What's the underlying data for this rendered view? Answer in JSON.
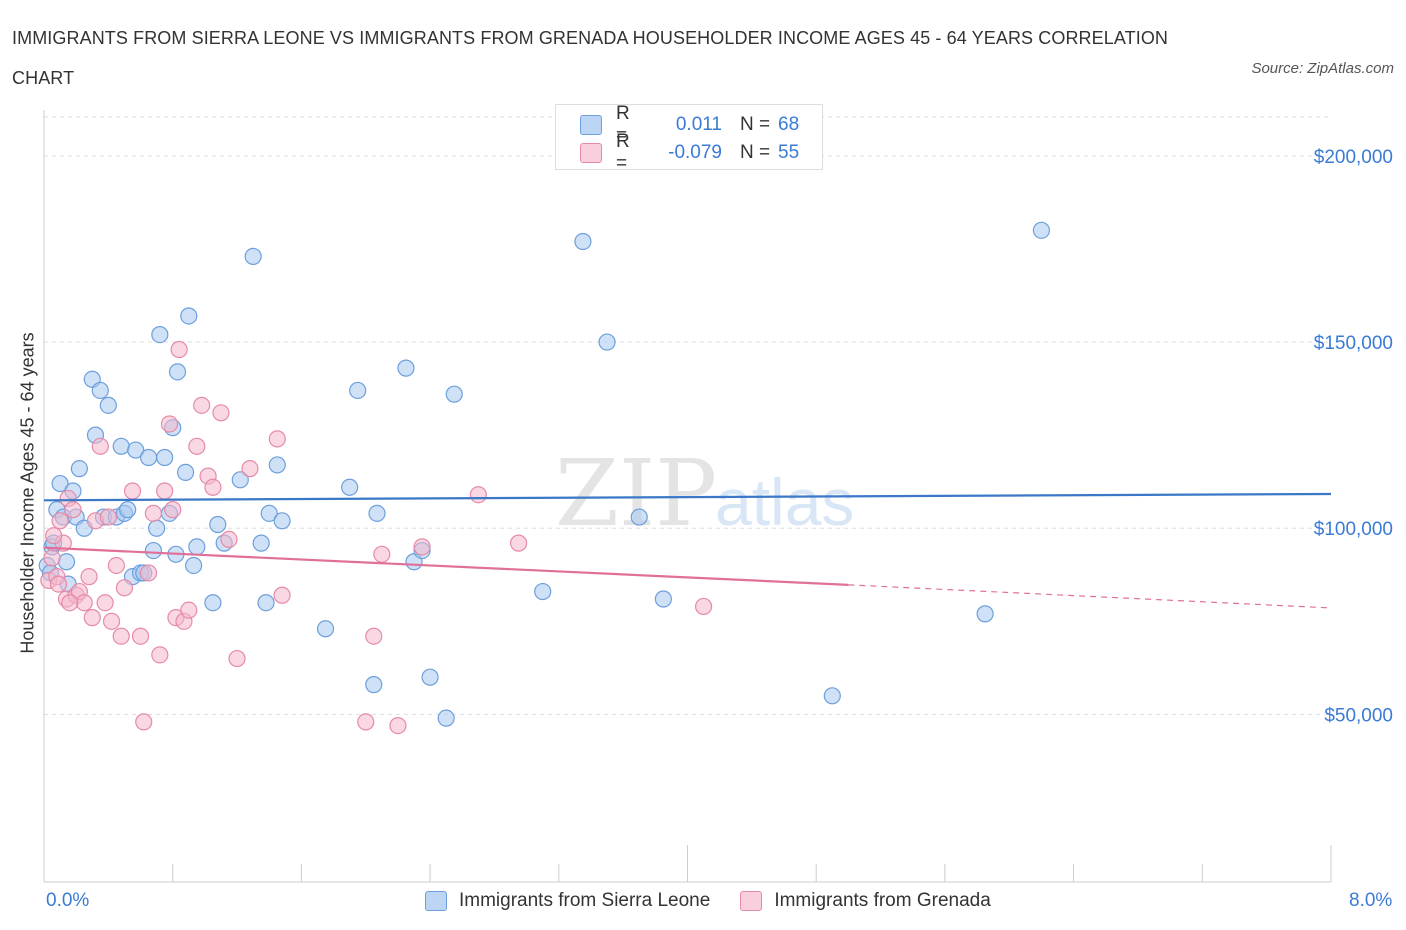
{
  "title": "IMMIGRANTS FROM SIERRA LEONE VS IMMIGRANTS FROM GRENADA HOUSEHOLDER INCOME AGES 45 - 64 YEARS CORRELATION CHART",
  "source": "Source: ZipAtlas.com",
  "colors": {
    "blue_fill": "#a8c8f0",
    "blue_stroke": "#6d9fdc",
    "blue_line": "#3b78c8",
    "pink_fill": "#f4b8cc",
    "pink_stroke": "#e68aa8",
    "pink_line": "#e0709a",
    "axis_text": "#3a7bd5",
    "grid": "#dddddd"
  },
  "legend": {
    "rows": [
      {
        "r_label": "R =",
        "r_value": "0.011",
        "n_label": "N =",
        "n_value": "68"
      },
      {
        "r_label": "R =",
        "r_value": "-0.079",
        "n_label": "N =",
        "n_value": "55"
      }
    ]
  },
  "bottom_legend": [
    "Immigrants from Sierra Leone",
    "Immigrants from Grenada"
  ],
  "chart_data": {
    "type": "scatter",
    "title": "IMMIGRANTS FROM SIERRA LEONE VS IMMIGRANTS FROM GRENADA HOUSEHOLDER INCOME AGES 45 - 64 YEARS CORRELATION CHART",
    "xlabel": "",
    "ylabel": "Householder Income Ages 45 - 64 years",
    "xlim": [
      0.0,
      8.0
    ],
    "ylim": [
      5000,
      215000
    ],
    "x_tick_labels": [
      "0.0%",
      "8.0%"
    ],
    "y_tick_labels": [
      "$50,000",
      "$100,000",
      "$150,000",
      "$200,000"
    ],
    "y_ticks": [
      50000,
      100000,
      150000,
      200000
    ],
    "grid": true,
    "watermark": "ZIPatlas",
    "series": [
      {
        "name": "Immigrants from Sierra Leone",
        "color": "#a8c8f0",
        "points": [
          [
            0.05,
            95000
          ],
          [
            0.08,
            105000
          ],
          [
            0.1,
            112000
          ],
          [
            0.12,
            103000
          ],
          [
            0.15,
            85000
          ],
          [
            0.18,
            110000
          ],
          [
            0.2,
            103000
          ],
          [
            0.22,
            116000
          ],
          [
            0.25,
            100000
          ],
          [
            0.3,
            140000
          ],
          [
            0.32,
            125000
          ],
          [
            0.35,
            137000
          ],
          [
            0.37,
            103000
          ],
          [
            0.4,
            133000
          ],
          [
            0.45,
            103000
          ],
          [
            0.48,
            122000
          ],
          [
            0.5,
            104000
          ],
          [
            0.52,
            105000
          ],
          [
            0.55,
            87000
          ],
          [
            0.57,
            121000
          ],
          [
            0.6,
            88000
          ],
          [
            0.62,
            88000
          ],
          [
            0.65,
            119000
          ],
          [
            0.68,
            94000
          ],
          [
            0.7,
            100000
          ],
          [
            0.72,
            152000
          ],
          [
            0.75,
            119000
          ],
          [
            0.78,
            104000
          ],
          [
            0.8,
            127000
          ],
          [
            0.82,
            93000
          ],
          [
            0.83,
            142000
          ],
          [
            0.88,
            115000
          ],
          [
            0.9,
            157000
          ],
          [
            0.93,
            90000
          ],
          [
            0.95,
            95000
          ],
          [
            1.05,
            80000
          ],
          [
            1.08,
            101000
          ],
          [
            1.12,
            96000
          ],
          [
            1.22,
            113000
          ],
          [
            1.3,
            173000
          ],
          [
            1.35,
            96000
          ],
          [
            1.38,
            80000
          ],
          [
            1.4,
            104000
          ],
          [
            1.45,
            117000
          ],
          [
            1.48,
            102000
          ],
          [
            1.75,
            73000
          ],
          [
            1.9,
            111000
          ],
          [
            1.95,
            137000
          ],
          [
            2.05,
            58000
          ],
          [
            2.07,
            104000
          ],
          [
            2.25,
            143000
          ],
          [
            2.3,
            91000
          ],
          [
            2.35,
            94000
          ],
          [
            2.4,
            60000
          ],
          [
            2.5,
            49000
          ],
          [
            2.55,
            136000
          ],
          [
            3.1,
            83000
          ],
          [
            3.35,
            177000
          ],
          [
            3.5,
            150000
          ],
          [
            3.7,
            103000
          ],
          [
            3.85,
            81000
          ],
          [
            4.9,
            55000
          ],
          [
            5.85,
            77000
          ],
          [
            6.2,
            180000
          ],
          [
            0.02,
            90000
          ],
          [
            0.04,
            88000
          ],
          [
            0.06,
            96000
          ],
          [
            0.14,
            91000
          ]
        ]
      },
      {
        "name": "Immigrants from Grenada",
        "color": "#f4b8cc",
        "points": [
          [
            0.03,
            86000
          ],
          [
            0.05,
            92000
          ],
          [
            0.08,
            87000
          ],
          [
            0.1,
            102000
          ],
          [
            0.12,
            96000
          ],
          [
            0.14,
            81000
          ],
          [
            0.15,
            108000
          ],
          [
            0.18,
            105000
          ],
          [
            0.2,
            82000
          ],
          [
            0.22,
            83000
          ],
          [
            0.25,
            80000
          ],
          [
            0.28,
            87000
          ],
          [
            0.3,
            76000
          ],
          [
            0.32,
            102000
          ],
          [
            0.35,
            122000
          ],
          [
            0.38,
            80000
          ],
          [
            0.4,
            103000
          ],
          [
            0.42,
            75000
          ],
          [
            0.45,
            90000
          ],
          [
            0.48,
            71000
          ],
          [
            0.5,
            84000
          ],
          [
            0.55,
            110000
          ],
          [
            0.6,
            71000
          ],
          [
            0.62,
            48000
          ],
          [
            0.65,
            88000
          ],
          [
            0.68,
            104000
          ],
          [
            0.72,
            66000
          ],
          [
            0.75,
            110000
          ],
          [
            0.78,
            128000
          ],
          [
            0.8,
            105000
          ],
          [
            0.82,
            76000
          ],
          [
            0.84,
            148000
          ],
          [
            0.87,
            75000
          ],
          [
            0.9,
            78000
          ],
          [
            0.95,
            122000
          ],
          [
            0.98,
            133000
          ],
          [
            1.02,
            114000
          ],
          [
            1.05,
            111000
          ],
          [
            1.1,
            131000
          ],
          [
            1.15,
            97000
          ],
          [
            1.2,
            65000
          ],
          [
            1.28,
            116000
          ],
          [
            1.45,
            124000
          ],
          [
            1.48,
            82000
          ],
          [
            2.0,
            48000
          ],
          [
            2.05,
            71000
          ],
          [
            2.1,
            93000
          ],
          [
            2.2,
            47000
          ],
          [
            2.35,
            95000
          ],
          [
            2.7,
            109000
          ],
          [
            2.95,
            96000
          ],
          [
            4.1,
            79000
          ],
          [
            0.06,
            98000
          ],
          [
            0.09,
            85000
          ],
          [
            0.16,
            80000
          ]
        ]
      }
    ],
    "trend_lines": [
      {
        "series": "Immigrants from Sierra Leone",
        "x": [
          0.0,
          8.0
        ],
        "y": [
          107500,
          109200
        ]
      },
      {
        "series": "Immigrants from Grenada",
        "x": [
          0.0,
          5.0
        ],
        "y": [
          94800,
          84800
        ],
        "dashed_extension": [
          5.0,
          8.0
        ],
        "dashed_y": [
          84800,
          78600
        ]
      }
    ]
  }
}
